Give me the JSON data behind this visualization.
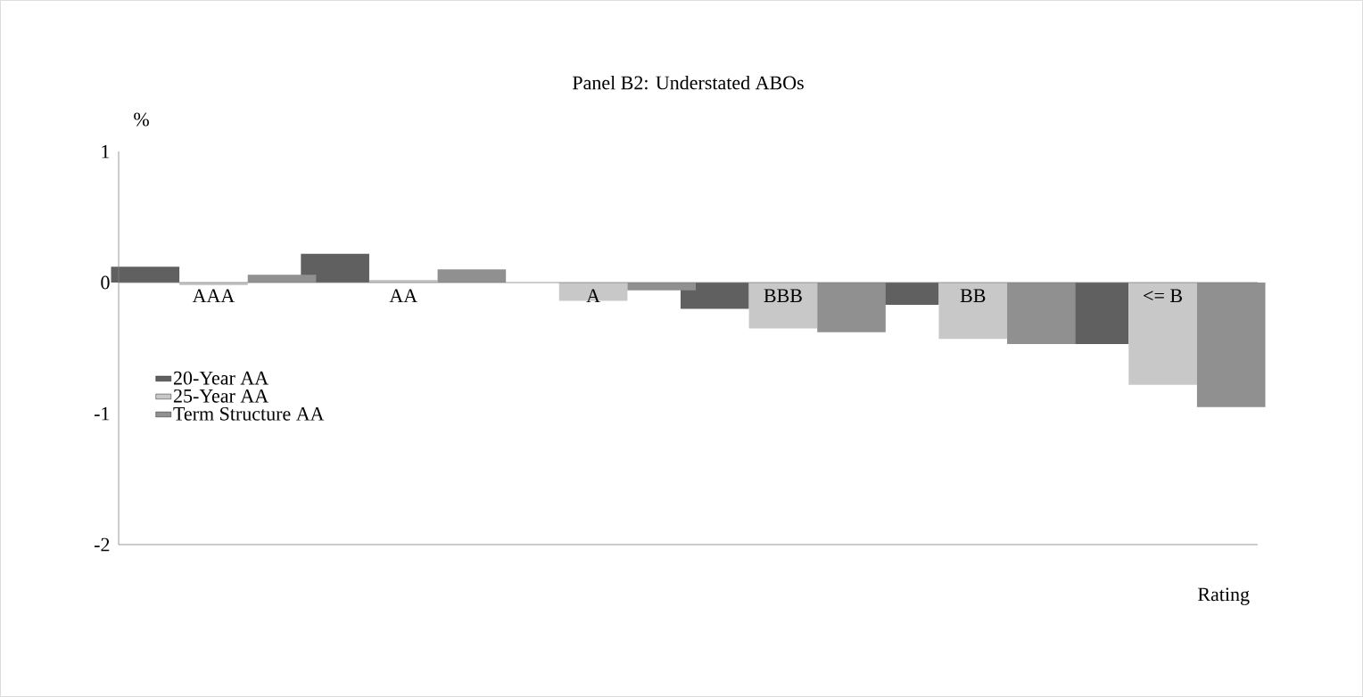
{
  "chart_data": {
    "type": "bar",
    "title": "Panel B2: Understated ABOs",
    "ylabel": "%",
    "xlabel": "Rating",
    "categories": [
      "AAA",
      "AA",
      "A",
      "BBB",
      "BB",
      "<= B"
    ],
    "series": [
      {
        "name": "20-Year AA",
        "color": "#606060",
        "values": [
          0.12,
          0.22,
          0,
          -0.2,
          -0.17,
          -0.47
        ]
      },
      {
        "name": "25-Year AA",
        "color": "#c8c8c8",
        "values": [
          -0.02,
          0.02,
          -0.14,
          -0.35,
          -0.43,
          -0.78
        ]
      },
      {
        "name": "Term Structure AA",
        "color": "#909090",
        "values": [
          0.06,
          0.1,
          -0.06,
          -0.38,
          -0.47,
          -0.95
        ]
      }
    ],
    "ylim": [
      -2,
      1
    ],
    "yticks": [
      -2,
      -1,
      0,
      1
    ],
    "grid": false,
    "legend": "left"
  }
}
